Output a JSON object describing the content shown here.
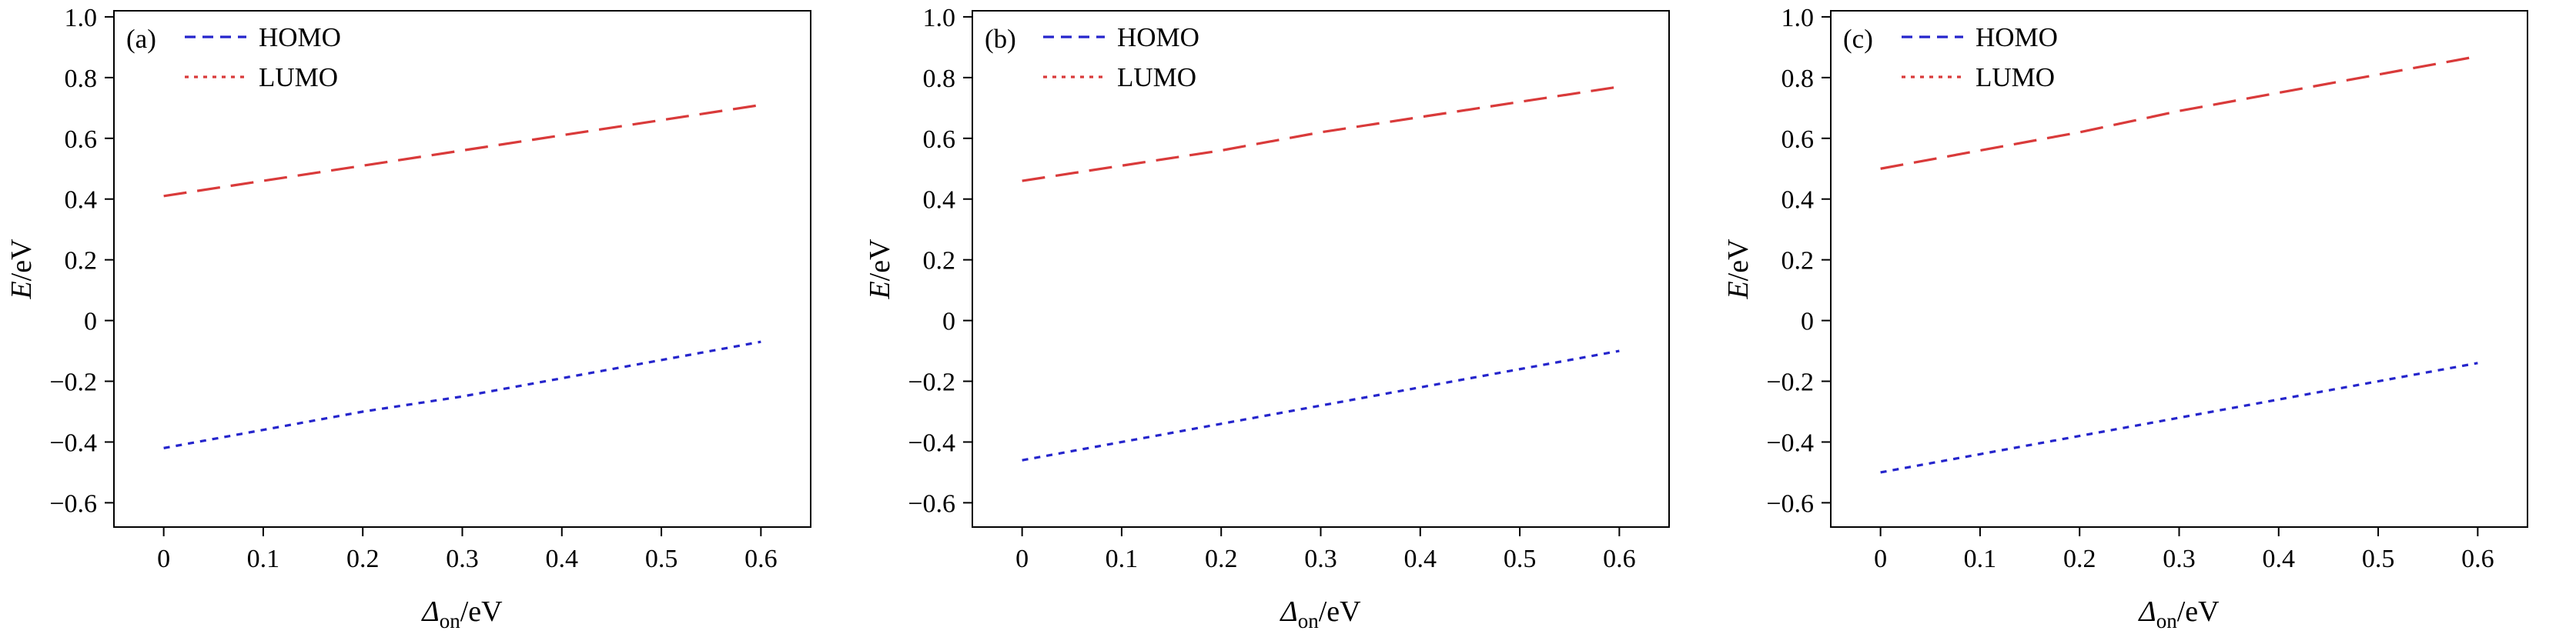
{
  "page": {
    "background": "#ffffff"
  },
  "chart_data": [
    {
      "type": "line",
      "panel_label": "(a)",
      "xlabel": {
        "symbol": "Δ",
        "subscript": "on",
        "unit": "/eV"
      },
      "ylabel": {
        "symbol": "E",
        "unit": "/eV"
      },
      "xlim": [
        -0.05,
        0.65
      ],
      "ylim": [
        -0.68,
        1.02
      ],
      "grid": false,
      "legend_position": "upper-left",
      "xticks": [
        0,
        0.1,
        0.2,
        0.3,
        0.4,
        0.5,
        0.6
      ],
      "xtick_labels": [
        "0",
        "0.1",
        "0.2",
        "0.3",
        "0.4",
        "0.5",
        "0.6"
      ],
      "yticks": [
        -0.6,
        -0.4,
        -0.2,
        0,
        0.2,
        0.4,
        0.6,
        0.8,
        1.0
      ],
      "ytick_labels": [
        "−0.6",
        "−0.4",
        "−0.2",
        "0",
        "0.2",
        "0.4",
        "0.6",
        "0.8",
        "1.0"
      ],
      "x": [
        0,
        0.1,
        0.2,
        0.3,
        0.4,
        0.5,
        0.6
      ],
      "series": [
        {
          "name": "HOMO",
          "color": "#2525cc",
          "dash_style": "dense",
          "legend_dash_style": "medium",
          "values": [
            -0.42,
            -0.36,
            -0.3,
            -0.25,
            -0.19,
            -0.13,
            -0.07
          ]
        },
        {
          "name": "LUMO",
          "color": "#d93a3a",
          "dash_style": "long",
          "legend_dash_style": "fine",
          "values": [
            0.41,
            0.46,
            0.51,
            0.56,
            0.61,
            0.66,
            0.71
          ]
        }
      ]
    },
    {
      "type": "line",
      "panel_label": "(b)",
      "xlabel": {
        "symbol": "Δ",
        "subscript": "on",
        "unit": "/eV"
      },
      "ylabel": {
        "symbol": "E",
        "unit": "/eV"
      },
      "xlim": [
        -0.05,
        0.65
      ],
      "ylim": [
        -0.68,
        1.02
      ],
      "grid": false,
      "legend_position": "upper-left",
      "xticks": [
        0,
        0.1,
        0.2,
        0.3,
        0.4,
        0.5,
        0.6
      ],
      "xtick_labels": [
        "0",
        "0.1",
        "0.2",
        "0.3",
        "0.4",
        "0.5",
        "0.6"
      ],
      "yticks": [
        -0.6,
        -0.4,
        -0.2,
        0,
        0.2,
        0.4,
        0.6,
        0.8,
        1.0
      ],
      "ytick_labels": [
        "−0.6",
        "−0.4",
        "−0.2",
        "0",
        "0.2",
        "0.4",
        "0.6",
        "0.8",
        "1.0"
      ],
      "x": [
        0,
        0.1,
        0.2,
        0.3,
        0.4,
        0.5,
        0.6
      ],
      "series": [
        {
          "name": "HOMO",
          "color": "#2525cc",
          "dash_style": "dense",
          "legend_dash_style": "medium",
          "values": [
            -0.46,
            -0.4,
            -0.34,
            -0.28,
            -0.22,
            -0.16,
            -0.1
          ]
        },
        {
          "name": "LUMO",
          "color": "#d93a3a",
          "dash_style": "long",
          "legend_dash_style": "fine",
          "values": [
            0.46,
            0.51,
            0.56,
            0.62,
            0.67,
            0.72,
            0.77
          ]
        }
      ]
    },
    {
      "type": "line",
      "panel_label": "(c)",
      "xlabel": {
        "symbol": "Δ",
        "subscript": "on",
        "unit": "/eV"
      },
      "ylabel": {
        "symbol": "E",
        "unit": "/eV"
      },
      "xlim": [
        -0.05,
        0.65
      ],
      "ylim": [
        -0.68,
        1.02
      ],
      "grid": false,
      "legend_position": "upper-left",
      "xticks": [
        0,
        0.1,
        0.2,
        0.3,
        0.4,
        0.5,
        0.6
      ],
      "xtick_labels": [
        "0",
        "0.1",
        "0.2",
        "0.3",
        "0.4",
        "0.5",
        "0.6"
      ],
      "yticks": [
        -0.6,
        -0.4,
        -0.2,
        0,
        0.2,
        0.4,
        0.6,
        0.8,
        1.0
      ],
      "ytick_labels": [
        "−0.6",
        "−0.4",
        "−0.2",
        "0",
        "0.2",
        "0.4",
        "0.6",
        "0.8",
        "1.0"
      ],
      "x": [
        0,
        0.1,
        0.2,
        0.3,
        0.4,
        0.5,
        0.6
      ],
      "series": [
        {
          "name": "HOMO",
          "color": "#2525cc",
          "dash_style": "dense",
          "legend_dash_style": "medium",
          "values": [
            -0.5,
            -0.44,
            -0.38,
            -0.32,
            -0.26,
            -0.2,
            -0.14
          ]
        },
        {
          "name": "LUMO",
          "color": "#d93a3a",
          "dash_style": "long",
          "legend_dash_style": "fine",
          "values": [
            0.5,
            0.56,
            0.62,
            0.69,
            0.75,
            0.81,
            0.87
          ]
        }
      ]
    }
  ]
}
